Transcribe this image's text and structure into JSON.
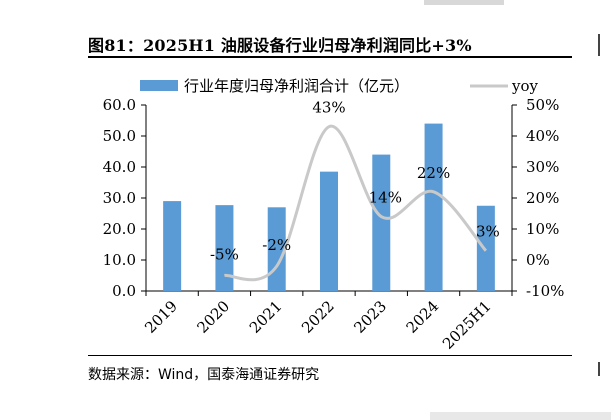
{
  "title": "图81：2025H1 油服设备行业归母净利润同比+3%",
  "source": "数据来源：Wind，国泰海通证券研究",
  "chart_data": {
    "type": "bar",
    "categories": [
      "2019",
      "2020",
      "2021",
      "2022",
      "2023",
      "2024",
      "2025H1"
    ],
    "series": [
      {
        "name": "行业年度归母净利润合计（亿元）",
        "type": "bar",
        "axis": "left",
        "color": "#5b9bd5",
        "values": [
          29.0,
          27.7,
          27.0,
          38.5,
          44.0,
          54.0,
          27.5
        ]
      },
      {
        "name": "yoy",
        "type": "line",
        "axis": "right",
        "color": "#c9c9c9",
        "values": [
          null,
          -0.05,
          -0.02,
          0.43,
          0.14,
          0.22,
          0.03
        ],
        "labels": [
          "",
          "-5%",
          "-2%",
          "43%",
          "14%",
          "22%",
          "3%"
        ]
      }
    ],
    "ylim": [
      0,
      60
    ],
    "yticks": [
      "0.0",
      "10.0",
      "20.0",
      "30.0",
      "40.0",
      "50.0",
      "60.0"
    ],
    "y2lim": [
      -0.1,
      0.5
    ],
    "y2ticks": [
      "-10%",
      "0%",
      "10%",
      "20%",
      "30%",
      "40%",
      "50%"
    ],
    "legend_placement": "top",
    "grid": false
  }
}
